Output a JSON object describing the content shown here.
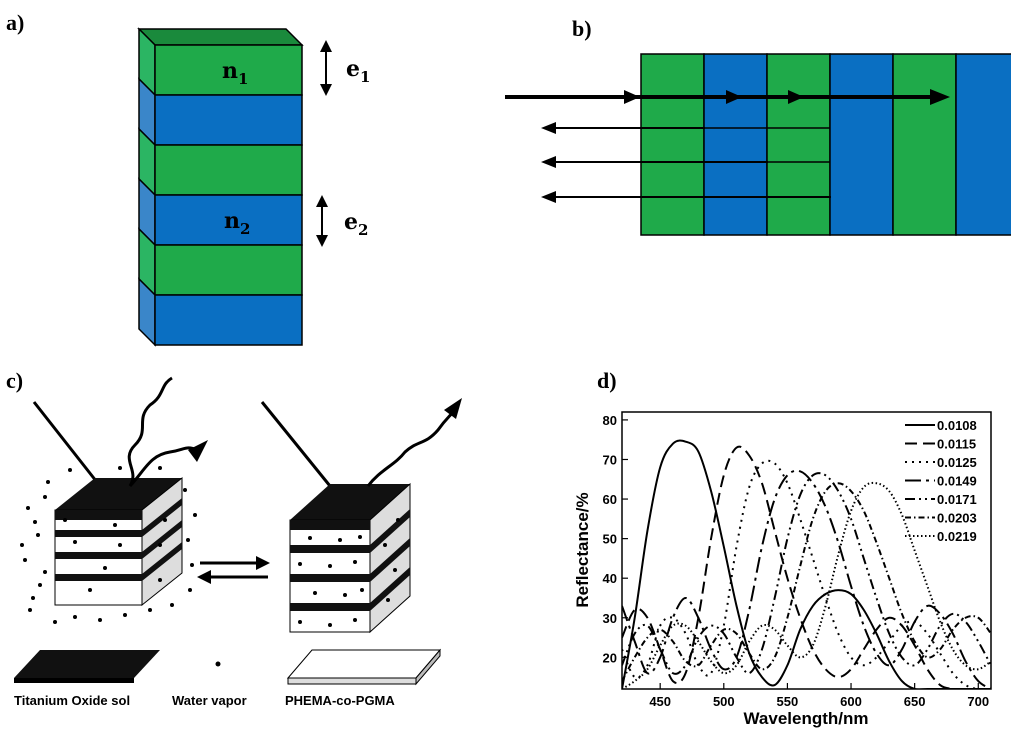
{
  "panels": {
    "a": {
      "label": "a)",
      "layers": [
        "green",
        "blue",
        "green",
        "blue",
        "green",
        "blue"
      ],
      "n1": {
        "base": "n",
        "sub": "1"
      },
      "n2": {
        "base": "n",
        "sub": "2"
      },
      "e1": {
        "base": "e",
        "sub": "1"
      },
      "e2": {
        "base": "e",
        "sub": "2"
      }
    },
    "b": {
      "label": "b)",
      "columns": [
        "green",
        "blue",
        "green",
        "blue",
        "green",
        "blue"
      ]
    },
    "c": {
      "label": "c)",
      "legend": [
        "Titanium Oxide sol",
        "Water vapor",
        "PHEMA-co-PGMA"
      ]
    },
    "d": {
      "label": "d)"
    }
  },
  "colors": {
    "green": "#1faa4a",
    "blue": "#0a6fc2",
    "green_side": "#2bb563",
    "blue_side": "#3a86c9",
    "top": "#1a8a3c"
  },
  "chart_data": {
    "type": "line",
    "title": "",
    "xlabel": "Wavelength/nm",
    "ylabel": "Reflectance/%",
    "xlim": [
      420,
      710
    ],
    "ylim": [
      12,
      82
    ],
    "xticks": [
      450,
      500,
      550,
      600,
      650,
      700
    ],
    "yticks": [
      20,
      30,
      40,
      50,
      60,
      70,
      80
    ],
    "legend_position": "top-right",
    "series": [
      {
        "name": "0.0108",
        "dash": "",
        "x": [
          420,
          430,
          440,
          450,
          460,
          470,
          480,
          490,
          500,
          510,
          520,
          530,
          540,
          550,
          560,
          570,
          580,
          590,
          600,
          610,
          620,
          630,
          640,
          650,
          660,
          670,
          680,
          690,
          700,
          710
        ],
        "y": [
          12,
          30,
          52,
          68,
          74,
          74.5,
          72,
          62,
          48,
          33,
          21,
          15,
          13,
          18,
          27,
          33,
          36,
          37,
          36,
          32,
          26,
          19,
          14,
          12,
          12,
          12,
          12,
          12,
          12,
          12
        ]
      },
      {
        "name": "0.0115",
        "dash": "12 6",
        "x": [
          420,
          430,
          440,
          450,
          460,
          470,
          480,
          490,
          500,
          510,
          520,
          530,
          540,
          550,
          560,
          570,
          580,
          590,
          600,
          610,
          620,
          630,
          640,
          650,
          660,
          670,
          680,
          690,
          700,
          710
        ],
        "y": [
          25,
          32,
          30,
          22,
          14,
          16,
          30,
          50,
          66,
          73,
          71,
          64,
          52,
          40,
          30,
          22,
          17,
          15,
          17,
          22,
          27,
          30,
          28,
          23,
          17,
          13,
          12,
          12,
          12,
          12
        ]
      },
      {
        "name": "0.0125",
        "dash": "2 5",
        "x": [
          420,
          430,
          440,
          450,
          460,
          470,
          480,
          490,
          500,
          510,
          520,
          530,
          540,
          550,
          560,
          570,
          580,
          590,
          600,
          610,
          620,
          630,
          640,
          650,
          660,
          670,
          680,
          690,
          700,
          710
        ],
        "y": [
          22,
          15,
          18,
          28,
          30,
          26,
          18,
          16,
          28,
          48,
          63,
          69,
          69,
          64,
          55,
          45,
          35,
          26,
          20,
          18,
          20,
          24,
          28,
          29,
          26,
          21,
          16,
          13,
          12,
          12
        ]
      },
      {
        "name": "0.0149",
        "dash": "16 5 3 5",
        "x": [
          420,
          430,
          440,
          450,
          460,
          470,
          480,
          490,
          500,
          510,
          520,
          530,
          540,
          550,
          560,
          570,
          580,
          590,
          600,
          610,
          620,
          630,
          640,
          650,
          660,
          670,
          680,
          690,
          700,
          710
        ],
        "y": [
          33,
          24,
          16,
          20,
          30,
          35,
          30,
          22,
          17,
          20,
          32,
          48,
          60,
          66,
          67,
          64,
          58,
          49,
          38,
          28,
          21,
          18,
          22,
          29,
          33,
          31,
          26,
          19,
          14,
          12
        ]
      },
      {
        "name": "0.0171",
        "dash": "10 4 2 4 2 4",
        "x": [
          420,
          430,
          440,
          450,
          460,
          470,
          480,
          490,
          500,
          510,
          520,
          530,
          540,
          550,
          560,
          570,
          580,
          590,
          600,
          610,
          620,
          630,
          640,
          650,
          660,
          670,
          680,
          690,
          700,
          710
        ],
        "y": [
          18,
          26,
          28,
          22,
          16,
          18,
          25,
          28,
          26,
          20,
          16,
          22,
          35,
          50,
          61,
          66,
          66,
          62,
          55,
          45,
          35,
          26,
          20,
          18,
          22,
          28,
          31,
          29,
          24,
          18
        ]
      },
      {
        "name": "0.0203",
        "dash": "6 3 1.5 3",
        "x": [
          420,
          430,
          440,
          450,
          460,
          470,
          480,
          490,
          500,
          510,
          520,
          530,
          540,
          550,
          560,
          570,
          580,
          590,
          600,
          610,
          620,
          630,
          640,
          650,
          660,
          670,
          680,
          690,
          700,
          710
        ],
        "y": [
          14,
          20,
          25,
          27,
          24,
          19,
          18,
          23,
          27,
          26,
          21,
          17,
          20,
          30,
          43,
          55,
          62,
          64,
          62,
          57,
          49,
          40,
          31,
          24,
          20,
          22,
          27,
          30,
          30,
          26
        ]
      },
      {
        "name": "0.0219",
        "dash": "1.5 2.5",
        "x": [
          420,
          430,
          440,
          450,
          460,
          470,
          480,
          490,
          500,
          510,
          520,
          530,
          540,
          550,
          560,
          570,
          580,
          590,
          600,
          610,
          620,
          630,
          640,
          650,
          660,
          670,
          680,
          690,
          700,
          710
        ],
        "y": [
          12,
          14,
          17,
          23,
          28,
          28,
          24,
          19,
          16,
          18,
          24,
          28,
          27,
          23,
          20,
          23,
          33,
          46,
          57,
          63,
          64,
          62,
          56,
          47,
          38,
          29,
          22,
          18,
          17,
          19
        ]
      }
    ]
  }
}
